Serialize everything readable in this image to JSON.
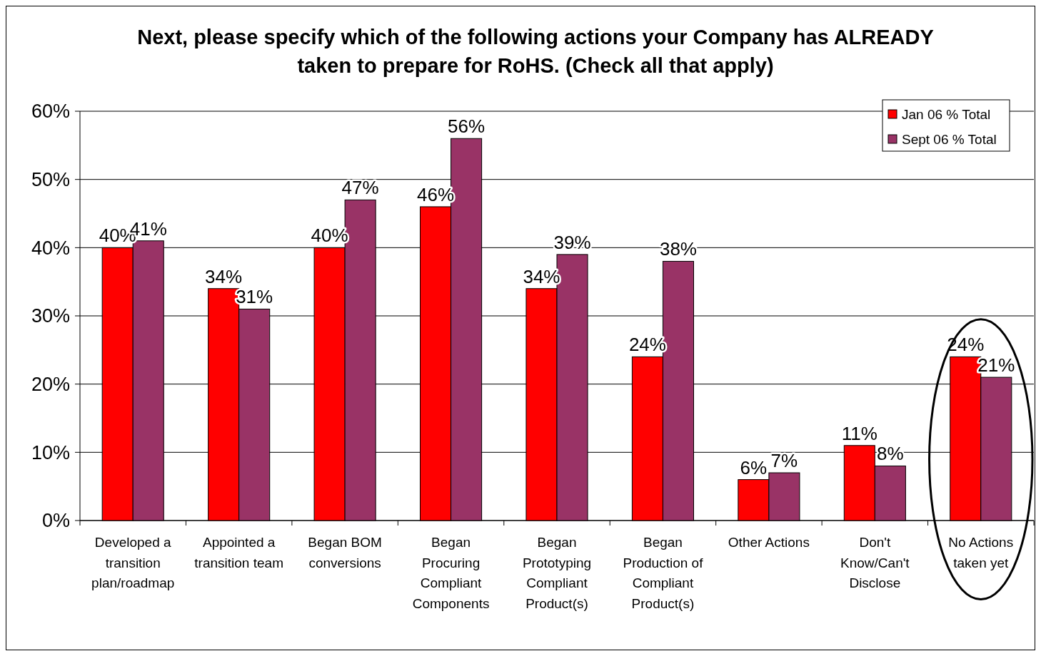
{
  "chart_data": {
    "type": "bar",
    "title": "Next, please specify which of the following actions your Company has ALREADY taken to prepare for RoHS. (Check all that apply)",
    "categories": [
      "Developed a transition plan/roadmap",
      "Appointed a transition team",
      "Began BOM conversions",
      "Began Procuring Compliant Components",
      "Began Prototyping Compliant Product(s)",
      "Began Production of Compliant Product(s)",
      "Other Actions",
      "Don't Know/Can't Disclose",
      "No Actions taken yet"
    ],
    "series": [
      {
        "name": "Jan 06 % Total",
        "color": "#ff0000",
        "values": [
          40,
          34,
          40,
          46,
          34,
          24,
          6,
          11,
          24
        ],
        "value_labels": [
          "40%",
          "34%",
          "40%",
          "46%",
          "34%",
          "24%",
          "6%",
          "11%",
          "24%"
        ]
      },
      {
        "name": "Sept 06 % Total",
        "color": "#993366",
        "values": [
          41,
          31,
          47,
          56,
          39,
          38,
          7,
          8,
          21
        ],
        "value_labels": [
          "41%",
          "31%",
          "47%",
          "56%",
          "39%",
          "38%",
          "7%",
          "8%",
          "21%"
        ]
      }
    ],
    "ylim": [
      0,
      60
    ],
    "yticks": [
      {
        "value": 0,
        "label": "0%"
      },
      {
        "value": 10,
        "label": "10%"
      },
      {
        "value": 20,
        "label": "20%"
      },
      {
        "value": 30,
        "label": "30%"
      },
      {
        "value": 40,
        "label": "40%"
      },
      {
        "value": 50,
        "label": "50%"
      },
      {
        "value": 60,
        "label": "60%"
      }
    ],
    "grid": "y",
    "legend": "top right"
  }
}
